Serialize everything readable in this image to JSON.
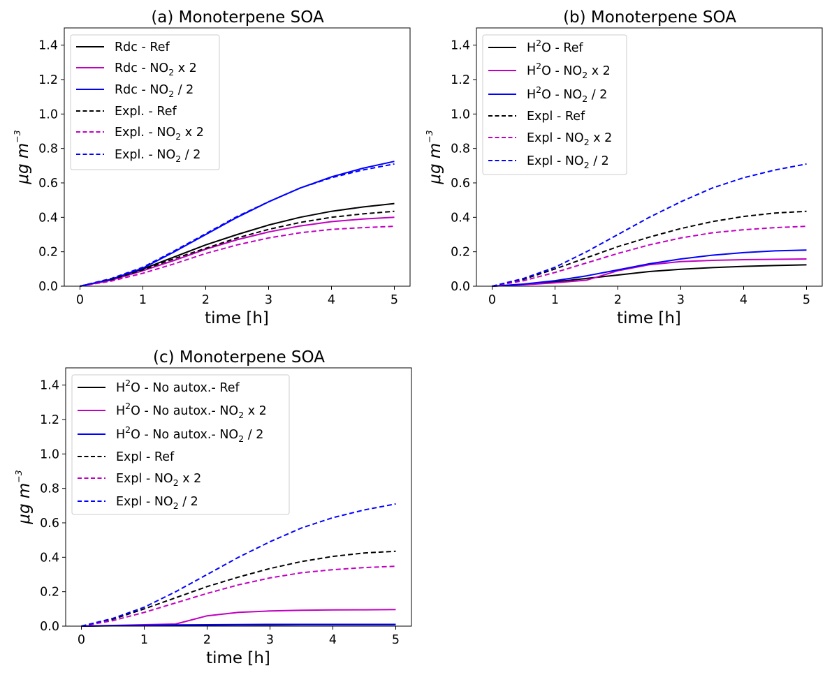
{
  "charts": [
    {
      "id": "a",
      "title": "(a) Monoterpene SOA",
      "xlabel": "time [h]",
      "ylabel": {
        "main": "μg  m",
        "sup": "−3"
      },
      "xticks": [
        "0",
        "1",
        "2",
        "3",
        "4",
        "5"
      ],
      "yticks": [
        "0.0",
        "0.2",
        "0.4",
        "0.6",
        "0.8",
        "1.0",
        "1.2",
        "1.4"
      ],
      "legend": [
        {
          "pre": "Rdc - Ref",
          "sub": "",
          "post": ""
        },
        {
          "pre": "Rdc - NO",
          "sub": "2",
          "post": " x 2"
        },
        {
          "pre": "Rdc - NO",
          "sub": "2",
          "post": " / 2"
        },
        {
          "pre": "Expl. - Ref",
          "sub": "",
          "post": ""
        },
        {
          "pre": "Expl. - NO",
          "sub": "2",
          "post": " x 2"
        },
        {
          "pre": "Expl. - NO",
          "sub": "2",
          "post": " / 2"
        }
      ]
    },
    {
      "id": "b",
      "title": "(b) Monoterpene SOA",
      "xlabel": "time [h]",
      "ylabel": {
        "main": "μg  m",
        "sup": "−3"
      },
      "xticks": [
        "0",
        "1",
        "2",
        "3",
        "4",
        "5"
      ],
      "yticks": [
        "0.0",
        "0.2",
        "0.4",
        "0.6",
        "0.8",
        "1.0",
        "1.2",
        "1.4"
      ],
      "legend": [
        {
          "pre": "H",
          "sup": "2",
          "mid": "O - Ref",
          "sub": "",
          "post": ""
        },
        {
          "pre": "H",
          "sup": "2",
          "mid": "O - NO",
          "sub": "2",
          "post": " x 2"
        },
        {
          "pre": "H",
          "sup": "2",
          "mid": "O - NO",
          "sub": "2",
          "post": " / 2"
        },
        {
          "pre": "Expl - Ref",
          "sub": "",
          "post": ""
        },
        {
          "pre": "Expl - NO",
          "sub": "2",
          "post": " x 2"
        },
        {
          "pre": "Expl - NO",
          "sub": "2",
          "post": " / 2"
        }
      ]
    },
    {
      "id": "c",
      "title": "(c) Monoterpene SOA",
      "xlabel": "time [h]",
      "ylabel": {
        "main": "μg  m",
        "sup": "−3"
      },
      "xticks": [
        "0",
        "1",
        "2",
        "3",
        "4",
        "5"
      ],
      "yticks": [
        "0.0",
        "0.2",
        "0.4",
        "0.6",
        "0.8",
        "1.0",
        "1.2",
        "1.4"
      ],
      "legend": [
        {
          "pre": "H",
          "sup": "2",
          "mid": "O - No autox.- Ref",
          "sub": "",
          "post": ""
        },
        {
          "pre": "H",
          "sup": "2",
          "mid": "O - No autox.- NO",
          "sub": "2",
          "post": " x 2"
        },
        {
          "pre": "H",
          "sup": "2",
          "mid": "O - No autox.- NO",
          "sub": "2",
          "post": " / 2"
        },
        {
          "pre": "Expl - Ref",
          "sub": "",
          "post": ""
        },
        {
          "pre": "Expl - NO",
          "sub": "2",
          "post": " x 2"
        },
        {
          "pre": "Expl - NO",
          "sub": "2",
          "post": " / 2"
        }
      ]
    }
  ],
  "chart_data": [
    {
      "type": "line",
      "title": "(a) Monoterpene SOA",
      "xlabel": "time [h]",
      "ylabel": "μg m^-3",
      "xlim": [
        -0.25,
        5.25
      ],
      "ylim": [
        0,
        1.5
      ],
      "legend_position": "top-left",
      "x": [
        0,
        0.5,
        1,
        1.5,
        2,
        2.5,
        3,
        3.5,
        4,
        4.5,
        5
      ],
      "series": [
        {
          "name": "Rdc - Ref",
          "color": "#000000",
          "style": "solid",
          "values": [
            0,
            0.04,
            0.1,
            0.17,
            0.24,
            0.3,
            0.355,
            0.4,
            0.435,
            0.46,
            0.48
          ]
        },
        {
          "name": "Rdc - NO2 x 2",
          "color": "#c000c0",
          "style": "solid",
          "values": [
            0,
            0.035,
            0.09,
            0.15,
            0.215,
            0.27,
            0.315,
            0.35,
            0.375,
            0.39,
            0.4
          ]
        },
        {
          "name": "Rdc - NO2 / 2",
          "color": "#0000ff",
          "style": "solid",
          "values": [
            0,
            0.04,
            0.105,
            0.2,
            0.3,
            0.4,
            0.49,
            0.57,
            0.635,
            0.685,
            0.725
          ]
        },
        {
          "name": "Expl. - Ref",
          "color": "#000000",
          "style": "dashed",
          "values": [
            0,
            0.038,
            0.095,
            0.16,
            0.22,
            0.28,
            0.33,
            0.37,
            0.4,
            0.42,
            0.435
          ]
        },
        {
          "name": "Expl. - NO2 x 2",
          "color": "#c000c0",
          "style": "dashed",
          "values": [
            0,
            0.03,
            0.075,
            0.13,
            0.19,
            0.24,
            0.28,
            0.31,
            0.33,
            0.34,
            0.348
          ]
        },
        {
          "name": "Expl. - NO2 / 2",
          "color": "#0000ff",
          "style": "dashed",
          "values": [
            0,
            0.045,
            0.11,
            0.205,
            0.305,
            0.405,
            0.49,
            0.57,
            0.63,
            0.675,
            0.71
          ]
        }
      ]
    },
    {
      "type": "line",
      "title": "(b) Monoterpene SOA",
      "xlabel": "time [h]",
      "ylabel": "μg m^-3",
      "xlim": [
        -0.25,
        5.25
      ],
      "ylim": [
        0,
        1.5
      ],
      "legend_position": "top-left",
      "x": [
        0,
        0.5,
        1,
        1.5,
        2,
        2.5,
        3,
        3.5,
        4,
        4.5,
        5
      ],
      "series": [
        {
          "name": "H2O - Ref",
          "color": "#000000",
          "style": "solid",
          "values": [
            0,
            0.01,
            0.025,
            0.045,
            0.065,
            0.085,
            0.098,
            0.108,
            0.115,
            0.12,
            0.124
          ]
        },
        {
          "name": "H2O - NO2 x 2",
          "color": "#c000c0",
          "style": "solid",
          "values": [
            0,
            0.008,
            0.02,
            0.035,
            0.09,
            0.125,
            0.143,
            0.15,
            0.154,
            0.156,
            0.158
          ]
        },
        {
          "name": "H2O - NO2 / 2",
          "color": "#0000ff",
          "style": "solid",
          "values": [
            0,
            0.012,
            0.032,
            0.06,
            0.095,
            0.13,
            0.158,
            0.18,
            0.195,
            0.205,
            0.21
          ]
        },
        {
          "name": "Expl - Ref",
          "color": "#000000",
          "style": "dashed",
          "values": [
            0,
            0.04,
            0.1,
            0.165,
            0.23,
            0.285,
            0.335,
            0.375,
            0.405,
            0.425,
            0.435
          ]
        },
        {
          "name": "Expl - NO2 x 2",
          "color": "#c000c0",
          "style": "dashed",
          "values": [
            0,
            0.032,
            0.08,
            0.135,
            0.19,
            0.24,
            0.28,
            0.31,
            0.328,
            0.34,
            0.348
          ]
        },
        {
          "name": "Expl - NO2 / 2",
          "color": "#0000ff",
          "style": "dashed",
          "values": [
            0,
            0.045,
            0.11,
            0.2,
            0.3,
            0.4,
            0.49,
            0.57,
            0.63,
            0.675,
            0.71
          ]
        }
      ]
    },
    {
      "type": "line",
      "title": "(c) Monoterpene SOA",
      "xlabel": "time [h]",
      "ylabel": "μg m^-3",
      "xlim": [
        -0.25,
        5.25
      ],
      "ylim": [
        0,
        1.5
      ],
      "legend_position": "top-left",
      "x": [
        0,
        0.5,
        1,
        1.5,
        2,
        2.5,
        3,
        3.5,
        4,
        4.5,
        5
      ],
      "series": [
        {
          "name": "H2O - No autox.- Ref",
          "color": "#000000",
          "style": "solid",
          "values": [
            0,
            0.002,
            0.004,
            0.005,
            0.006,
            0.007,
            0.007,
            0.008,
            0.008,
            0.008,
            0.008
          ]
        },
        {
          "name": "H2O - No autox.- NO2 x 2",
          "color": "#c000c0",
          "style": "solid",
          "values": [
            0,
            0.004,
            0.008,
            0.012,
            0.06,
            0.08,
            0.088,
            0.092,
            0.094,
            0.095,
            0.096
          ]
        },
        {
          "name": "H2O - No autox.- NO2 / 2",
          "color": "#0000ff",
          "style": "solid",
          "values": [
            0,
            0.003,
            0.005,
            0.007,
            0.008,
            0.009,
            0.01,
            0.01,
            0.01,
            0.01,
            0.01
          ]
        },
        {
          "name": "Expl - Ref",
          "color": "#000000",
          "style": "dashed",
          "values": [
            0,
            0.04,
            0.1,
            0.165,
            0.23,
            0.285,
            0.335,
            0.375,
            0.405,
            0.425,
            0.435
          ]
        },
        {
          "name": "Expl - NO2 x 2",
          "color": "#c000c0",
          "style": "dashed",
          "values": [
            0,
            0.032,
            0.08,
            0.135,
            0.19,
            0.24,
            0.28,
            0.31,
            0.328,
            0.34,
            0.348
          ]
        },
        {
          "name": "Expl - NO2 / 2",
          "color": "#0000ff",
          "style": "dashed",
          "values": [
            0,
            0.045,
            0.11,
            0.2,
            0.3,
            0.4,
            0.49,
            0.57,
            0.63,
            0.675,
            0.71
          ]
        }
      ]
    }
  ]
}
